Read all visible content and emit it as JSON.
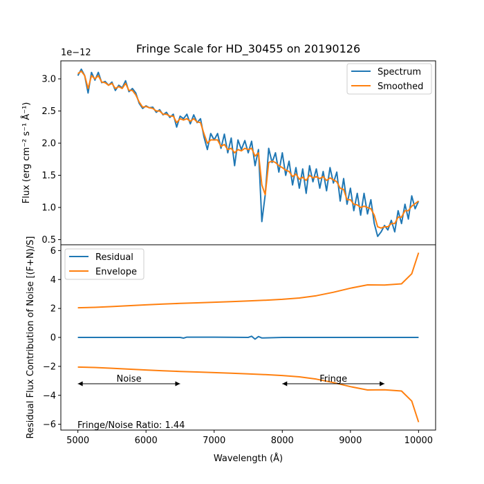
{
  "chart_data": [
    {
      "type": "line",
      "title": "Fringe Scale for HD_30455 on 20190126",
      "offset_label": "1e−12",
      "ylabel": "Flux (erg cm⁻² s⁻¹ Å⁻¹)",
      "xlabel": "",
      "xlim": [
        4750,
        10250
      ],
      "ylim": [
        4.2e-13,
        3.28e-12
      ],
      "yticks": [
        0.5,
        1.0,
        1.5,
        2.0,
        2.5,
        3.0
      ],
      "ytick_labels": [
        "0.5",
        "1.0",
        "1.5",
        "2.0",
        "2.5",
        "3.0"
      ],
      "legend_position": "upper right",
      "colors": {
        "Spectrum": "#1f77b4",
        "Smoothed": "#ff7f0e"
      },
      "series": [
        {
          "name": "Spectrum",
          "x": [
            5000,
            5050,
            5100,
            5150,
            5200,
            5250,
            5300,
            5350,
            5400,
            5450,
            5500,
            5550,
            5600,
            5650,
            5700,
            5750,
            5800,
            5850,
            5900,
            5950,
            6000,
            6050,
            6100,
            6150,
            6200,
            6250,
            6300,
            6350,
            6400,
            6450,
            6500,
            6550,
            6600,
            6650,
            6700,
            6750,
            6800,
            6850,
            6900,
            6950,
            7000,
            7050,
            7100,
            7150,
            7200,
            7250,
            7300,
            7350,
            7400,
            7450,
            7500,
            7550,
            7600,
            7650,
            7700,
            7750,
            7800,
            7850,
            7900,
            7950,
            8000,
            8050,
            8100,
            8150,
            8200,
            8250,
            8300,
            8350,
            8400,
            8450,
            8500,
            8550,
            8600,
            8650,
            8700,
            8750,
            8800,
            8850,
            8900,
            8950,
            9000,
            9050,
            9100,
            9150,
            9200,
            9250,
            9300,
            9350,
            9400,
            9450,
            9500,
            9550,
            9600,
            9650,
            9700,
            9750,
            9800,
            9850,
            9900,
            9950,
            10000
          ],
          "values": [
            3.05,
            3.15,
            3.05,
            2.78,
            3.1,
            2.98,
            3.1,
            2.94,
            2.96,
            2.9,
            2.95,
            2.82,
            2.9,
            2.86,
            2.97,
            2.8,
            2.85,
            2.78,
            2.62,
            2.54,
            2.58,
            2.55,
            2.56,
            2.48,
            2.52,
            2.44,
            2.48,
            2.4,
            2.45,
            2.25,
            2.42,
            2.38,
            2.45,
            2.3,
            2.44,
            2.32,
            2.38,
            2.1,
            1.9,
            2.15,
            2.05,
            2.15,
            1.92,
            2.14,
            1.85,
            2.08,
            1.65,
            2.05,
            1.9,
            2.04,
            1.85,
            2.03,
            1.65,
            1.9,
            0.78,
            1.2,
            1.92,
            1.7,
            1.85,
            1.55,
            1.85,
            1.5,
            1.72,
            1.35,
            1.62,
            1.3,
            1.6,
            1.22,
            1.65,
            1.4,
            1.6,
            1.3,
            1.56,
            1.26,
            1.62,
            1.38,
            1.55,
            1.1,
            1.45,
            1.05,
            1.3,
            0.95,
            1.22,
            0.88,
            1.22,
            0.9,
            1.12,
            0.75,
            0.55,
            0.62,
            0.72,
            0.65,
            0.8,
            0.62,
            0.95,
            0.75,
            1.05,
            0.82,
            1.18,
            0.98,
            1.1
          ],
          "unit_scale": 1e-12
        },
        {
          "name": "Smoothed",
          "x": [
            5000,
            5050,
            5100,
            5150,
            5200,
            5250,
            5300,
            5350,
            5400,
            5450,
            5500,
            5550,
            5600,
            5650,
            5700,
            5750,
            5800,
            5850,
            5900,
            5950,
            6000,
            6050,
            6100,
            6150,
            6200,
            6250,
            6300,
            6350,
            6400,
            6450,
            6500,
            6550,
            6600,
            6650,
            6700,
            6750,
            6800,
            6850,
            6900,
            6950,
            7000,
            7050,
            7100,
            7150,
            7200,
            7250,
            7300,
            7350,
            7400,
            7450,
            7500,
            7550,
            7600,
            7650,
            7700,
            7750,
            7800,
            7850,
            7900,
            7950,
            8000,
            8050,
            8100,
            8150,
            8200,
            8250,
            8300,
            8350,
            8400,
            8450,
            8500,
            8550,
            8600,
            8650,
            8700,
            8750,
            8800,
            8850,
            8900,
            8950,
            9000,
            9050,
            9100,
            9150,
            9200,
            9250,
            9300,
            9350,
            9400,
            9450,
            9500,
            9550,
            9600,
            9650,
            9700,
            9750,
            9800,
            9850,
            9900,
            9950,
            10000
          ],
          "values": [
            3.08,
            3.12,
            3.05,
            2.85,
            3.05,
            3.0,
            3.05,
            2.95,
            2.94,
            2.9,
            2.93,
            2.85,
            2.88,
            2.85,
            2.93,
            2.82,
            2.82,
            2.75,
            2.64,
            2.56,
            2.57,
            2.55,
            2.54,
            2.5,
            2.5,
            2.45,
            2.45,
            2.42,
            2.42,
            2.32,
            2.38,
            2.36,
            2.38,
            2.34,
            2.38,
            2.33,
            2.32,
            2.15,
            2.0,
            2.05,
            2.05,
            2.05,
            1.95,
            1.98,
            1.9,
            1.92,
            1.85,
            1.9,
            1.88,
            1.92,
            1.9,
            1.92,
            1.8,
            1.85,
            1.35,
            1.2,
            1.7,
            1.72,
            1.7,
            1.65,
            1.62,
            1.58,
            1.56,
            1.48,
            1.52,
            1.44,
            1.47,
            1.42,
            1.5,
            1.46,
            1.48,
            1.45,
            1.48,
            1.42,
            1.46,
            1.43,
            1.4,
            1.3,
            1.28,
            1.12,
            1.12,
            1.05,
            1.04,
            1.0,
            1.02,
            1.0,
            0.98,
            0.88,
            0.7,
            0.68,
            0.7,
            0.7,
            0.75,
            0.75,
            0.85,
            0.85,
            0.95,
            0.95,
            1.02,
            1.06,
            1.1
          ],
          "unit_scale": 1e-12
        }
      ]
    },
    {
      "type": "line",
      "title": "",
      "xlabel": "Wavelength (Å)",
      "ylabel": "Residual Flux Contribution of Noise [(F+N)/S]",
      "xlim": [
        4750,
        10250
      ],
      "ylim": [
        -6.4,
        6.4
      ],
      "xticks": [
        5000,
        6000,
        7000,
        8000,
        9000,
        10000
      ],
      "xtick_labels": [
        "5000",
        "6000",
        "7000",
        "8000",
        "9000",
        "10000"
      ],
      "yticks": [
        -6,
        -4,
        -2,
        0,
        2,
        4,
        6
      ],
      "ytick_labels": [
        "−6",
        "−4",
        "−2",
        "0",
        "2",
        "4",
        "6"
      ],
      "legend_position": "upper left",
      "colors": {
        "Residual": "#1f77b4",
        "Envelope": "#ff7f0e"
      },
      "series": [
        {
          "name": "Residual",
          "x": [
            5000,
            5500,
            6000,
            6500,
            6550,
            6600,
            7000,
            7500,
            7550,
            7600,
            7650,
            7700,
            8000,
            8500,
            9000,
            9500,
            10000
          ],
          "values": [
            0.0,
            0.0,
            0.0,
            0.0,
            -0.05,
            0.02,
            0.02,
            0.0,
            0.08,
            -0.12,
            0.06,
            -0.04,
            0.0,
            0.0,
            0.0,
            0.0,
            0.0
          ]
        },
        {
          "name": "Envelope",
          "x": [
            5000,
            5250,
            5500,
            5750,
            6000,
            6250,
            6500,
            6750,
            7000,
            7250,
            7500,
            7750,
            8000,
            8250,
            8500,
            8750,
            9000,
            9250,
            9500,
            9750,
            9900,
            10000
          ],
          "values": [
            2.05,
            2.08,
            2.13,
            2.19,
            2.25,
            2.3,
            2.35,
            2.39,
            2.43,
            2.47,
            2.52,
            2.57,
            2.63,
            2.72,
            2.88,
            3.12,
            3.4,
            3.63,
            3.62,
            3.7,
            4.4,
            5.85
          ]
        },
        {
          "name": "",
          "x": [
            5000,
            5250,
            5500,
            5750,
            6000,
            6250,
            6500,
            6750,
            7000,
            7250,
            7500,
            7750,
            8000,
            8250,
            8500,
            8750,
            9000,
            9250,
            9500,
            9750,
            9900,
            10000
          ],
          "values": [
            -2.05,
            -2.08,
            -2.13,
            -2.19,
            -2.25,
            -2.3,
            -2.35,
            -2.39,
            -2.43,
            -2.47,
            -2.52,
            -2.57,
            -2.63,
            -2.72,
            -2.88,
            -3.12,
            -3.4,
            -3.63,
            -3.62,
            -3.7,
            -4.4,
            -5.85
          ]
        }
      ],
      "annotations": [
        {
          "text": "Noise",
          "x_from": 5000,
          "x_to": 6500,
          "y": -3.2
        },
        {
          "text": "Fringe",
          "x_from": 8000,
          "x_to": 9500,
          "y": -3.2
        }
      ],
      "ratio_text": "Fringe/Noise Ratio: 1.44"
    }
  ]
}
